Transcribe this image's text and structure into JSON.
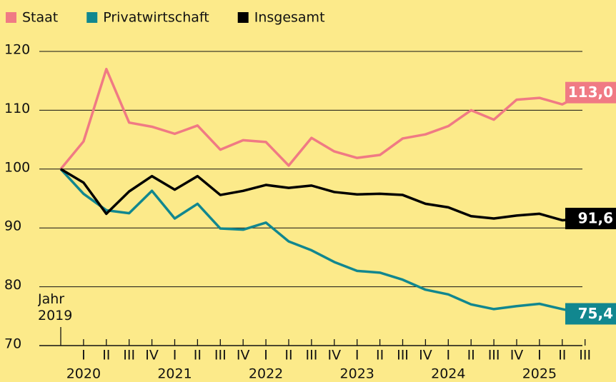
{
  "chart_data": {
    "type": "line",
    "categories": [
      "Jahr 2019",
      "I",
      "II",
      "III",
      "IV",
      "I",
      "II",
      "III",
      "IV",
      "I",
      "II",
      "III",
      "IV",
      "I",
      "II",
      "III",
      "IV",
      "I",
      "II",
      "III",
      "IV",
      "I",
      "II",
      "III"
    ],
    "years": [
      "2020",
      "2021",
      "2022",
      "2023",
      "2024",
      "2025"
    ],
    "series": [
      {
        "name": "Staat",
        "color": "#f07a84",
        "values": [
          100,
          104.7,
          117,
          107.9,
          107.2,
          106,
          107.4,
          103.3,
          104.9,
          104.6,
          100.6,
          105.3,
          103,
          101.9,
          102.4,
          105.2,
          105.9,
          107.3,
          110,
          108.4,
          111.8,
          112.1,
          111,
          113.0
        ],
        "value_labels": [
          null,
          null,
          null,
          null,
          null,
          null,
          null,
          null,
          null,
          null,
          null,
          null,
          null,
          null,
          null,
          null,
          null,
          null,
          null,
          null,
          null,
          null,
          null,
          "113,0"
        ]
      },
      {
        "name": "Privatwirtschaft",
        "color": "#11878f",
        "values": [
          100,
          95.8,
          93,
          92.5,
          96.3,
          91.6,
          94.1,
          89.9,
          89.7,
          90.9,
          87.7,
          86.2,
          84.2,
          82.7,
          82.4,
          81.2,
          79.5,
          78.7,
          77,
          76.2,
          76.7,
          77.1,
          76.2,
          75.4
        ],
        "value_labels": [
          null,
          null,
          null,
          null,
          null,
          null,
          null,
          null,
          null,
          null,
          null,
          null,
          null,
          null,
          null,
          null,
          null,
          null,
          null,
          null,
          null,
          null,
          null,
          "75,4"
        ]
      },
      {
        "name": "Insgesamt",
        "color": "#000000",
        "values": [
          100,
          97.7,
          92.4,
          96.2,
          98.8,
          96.5,
          98.8,
          95.6,
          96.3,
          97.3,
          96.8,
          97.2,
          96.1,
          95.7,
          95.8,
          95.6,
          94.1,
          93.5,
          92,
          91.6,
          92.1,
          92.4,
          91.3,
          91.6
        ],
        "value_labels": [
          null,
          null,
          null,
          null,
          null,
          null,
          null,
          null,
          null,
          null,
          null,
          null,
          null,
          null,
          null,
          null,
          null,
          null,
          null,
          null,
          null,
          null,
          null,
          "91,6"
        ]
      }
    ],
    "ylim": [
      70,
      120
    ],
    "yticks": [
      70,
      80,
      90,
      100,
      110,
      120
    ],
    "grid": true,
    "legend": "top-left"
  }
}
